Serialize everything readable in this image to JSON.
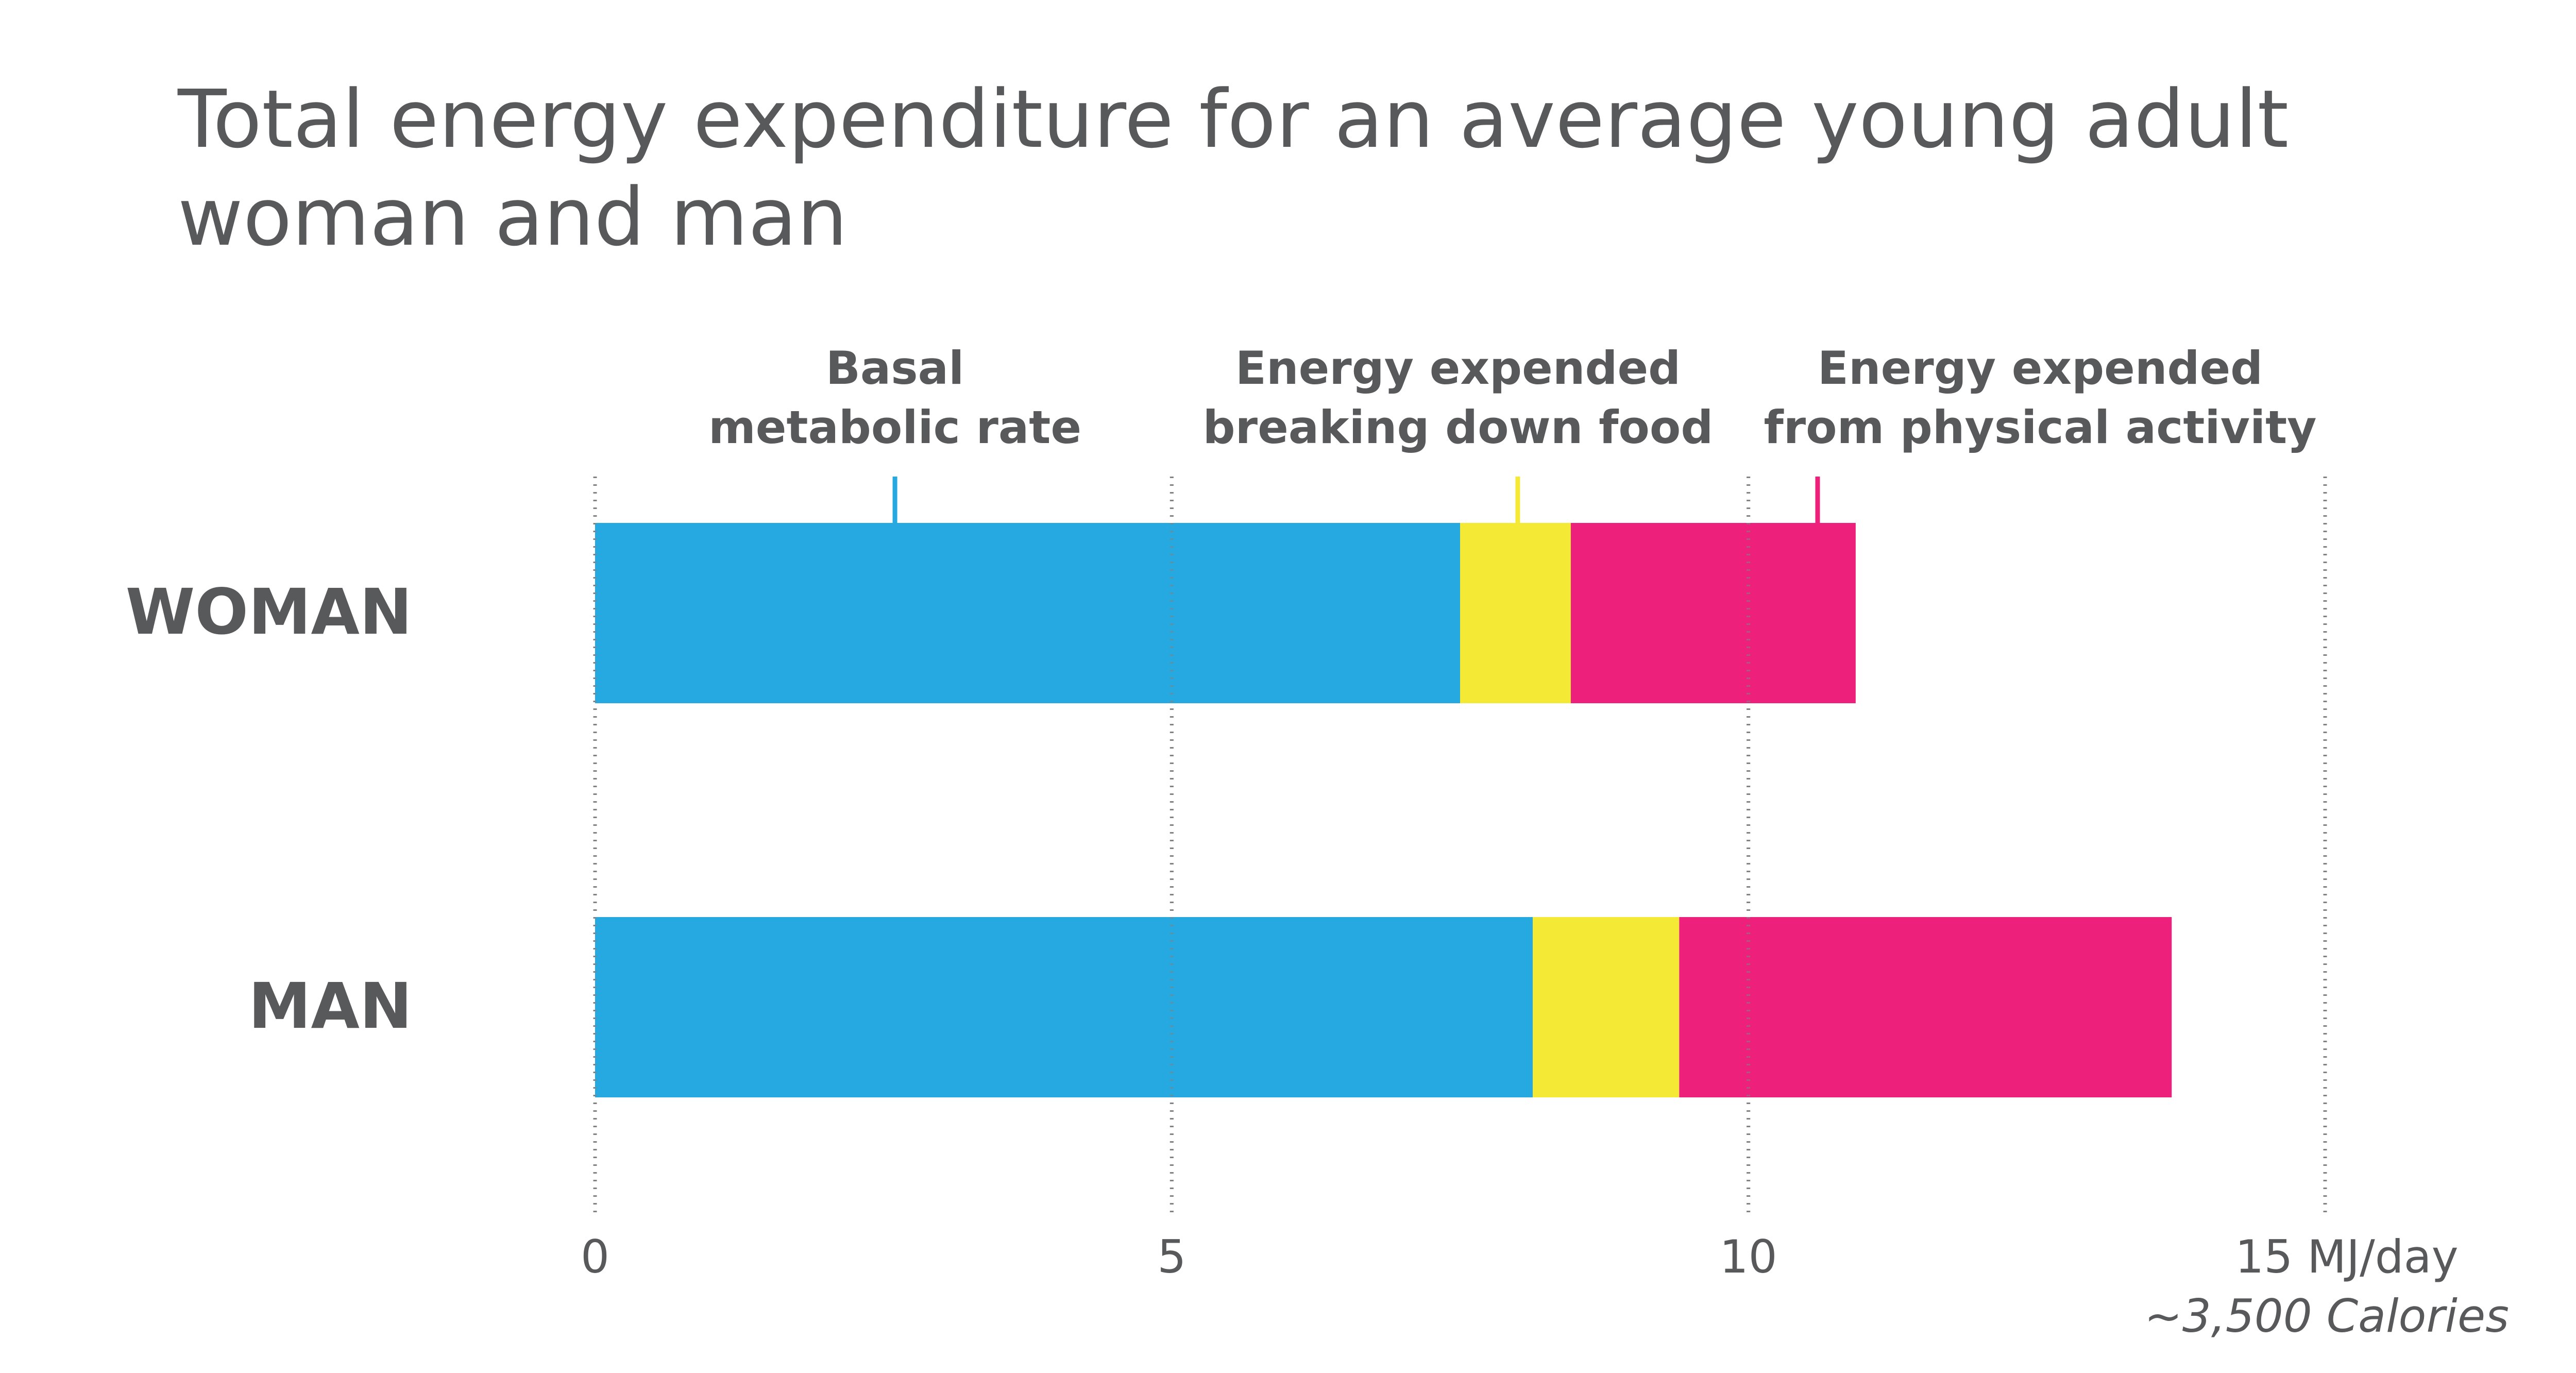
{
  "chart_data": {
    "type": "bar",
    "orientation": "horizontal",
    "stacked": true,
    "title": "Total energy expenditure for an average young adult woman and man",
    "title_lines": [
      "Total energy expenditure for an average young adult",
      "woman and man"
    ],
    "categories": [
      "WOMAN",
      "MAN"
    ],
    "series": [
      {
        "name": "Basal metabolic rate",
        "label_lines": [
          "Basal",
          "metabolic rate"
        ],
        "color": "#25a9e0",
        "values": [
          7.5,
          8.13
        ]
      },
      {
        "name": "Energy expended breaking down food",
        "label_lines": [
          "Energy expended",
          "breaking down food"
        ],
        "color": "#f4ea35",
        "values": [
          0.96,
          1.27
        ]
      },
      {
        "name": "Energy expended from physical activity",
        "label_lines": [
          "Energy expended",
          "from physical activity"
        ],
        "color": "#ed217c",
        "values": [
          2.47,
          4.27
        ]
      }
    ],
    "xlim": [
      0,
      15
    ],
    "x_ticks": [
      {
        "value": 0,
        "label": "0"
      },
      {
        "value": 5,
        "label": "5"
      },
      {
        "value": 10,
        "label": "10"
      },
      {
        "value": 15,
        "label": "15 MJ/day"
      }
    ],
    "x_unit_note": "~3,500 Calories",
    "legend_pointer_values": [
      2.6,
      8.0,
      10.6
    ],
    "grid": true,
    "legend_placement": "top"
  }
}
